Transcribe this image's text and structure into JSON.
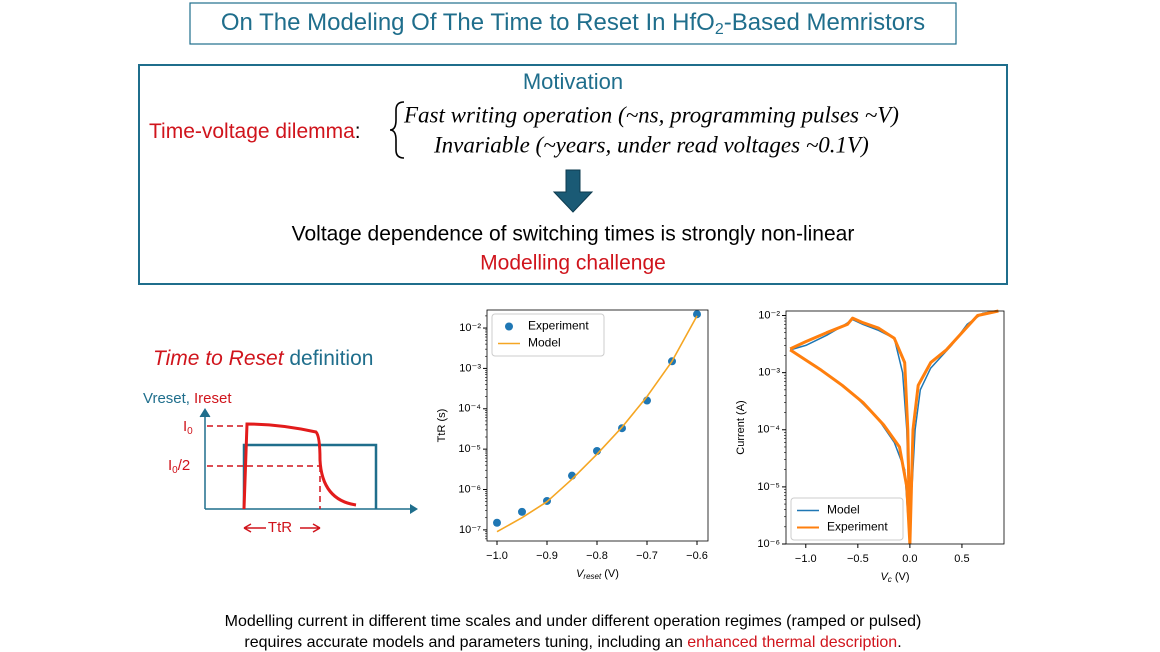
{
  "title": {
    "before": "On The Modeling Of The Time to Reset In HfO",
    "sub": "2",
    "after": "-Based Memristors"
  },
  "motivation": {
    "heading": "Motivation",
    "dilemma": "Time-voltage dilemma",
    "colon": ":",
    "line1": "Fast writing operation (~ns, programming pulses ~V)",
    "line2": "Invariable (~years,  under read voltages ~0.1V)",
    "conclusion": "Voltage dependence of switching times is strongly non-linear",
    "challenge": "Modelling challenge"
  },
  "definition": {
    "title_italic": "Time to Reset",
    "title_rest": " definition",
    "vreset": "Vreset,",
    "ireset": "Ireset",
    "i0": {
      "main": "I",
      "sub": "0"
    },
    "i0half": {
      "main": "I",
      "sub": "0",
      "rest": "/2"
    },
    "ttr": "TtR"
  },
  "footer": {
    "line1": "Modelling current in different time scales and under different operation regimes (ramped or pulsed)",
    "line2": "requires accurate models and parameters tuning, including an ",
    "highlight": "enhanced thermal description",
    "end": "."
  },
  "chart_data": [
    {
      "type": "scatter",
      "log_y": true,
      "legend": "upper left",
      "xlabel": {
        "main": "V",
        "sub": "reset",
        "unit": " (V)"
      },
      "ylabel": "TtR (s)",
      "xlim": [
        -1.02,
        -0.578
      ],
      "ylim": [
        5.3e-08,
        0.028
      ],
      "xticks": [
        {
          "value": -1.0,
          "label": "−1.0"
        },
        {
          "value": -0.9,
          "label": "−0.9"
        },
        {
          "value": -0.8,
          "label": "−0.8"
        },
        {
          "value": -0.7,
          "label": "−0.7"
        },
        {
          "value": -0.6,
          "label": "−0.6"
        }
      ],
      "yticks": [
        {
          "value": 1e-07,
          "label": "10⁻⁷"
        },
        {
          "value": 1e-06,
          "label": "10⁻⁶"
        },
        {
          "value": 1e-05,
          "label": "10⁻⁵"
        },
        {
          "value": 0.0001,
          "label": "10⁻⁴"
        },
        {
          "value": 0.001,
          "label": "10⁻³"
        },
        {
          "value": 0.01,
          "label": "10⁻²"
        }
      ],
      "series": [
        {
          "name": "Experiment",
          "type": "scatter",
          "color": "#1f77b4",
          "x": [
            -1.0,
            -0.95,
            -0.9,
            -0.85,
            -0.8,
            -0.75,
            -0.7,
            -0.65,
            -0.6
          ],
          "values": [
            1.5e-07,
            2.8e-07,
            5.2e-07,
            2.2e-06,
            9e-06,
            3.3e-05,
            0.00016,
            0.0015,
            0.022
          ]
        },
        {
          "name": "Model",
          "type": "line",
          "color": "#f5a623",
          "x": [
            -1.0,
            -0.95,
            -0.9,
            -0.85,
            -0.8,
            -0.75,
            -0.7,
            -0.65,
            -0.6
          ],
          "values": [
            9e-08,
            2e-07,
            5e-07,
            1.8e-06,
            7.5e-06,
            3.5e-05,
            0.0002,
            0.0015,
            0.02
          ]
        }
      ]
    },
    {
      "type": "line",
      "log_y": true,
      "legend": "lower left",
      "xlabel": {
        "main": "V",
        "sub": "c",
        "unit": " (V)"
      },
      "ylabel": "Current (A)",
      "xlim": [
        -1.19,
        0.904
      ],
      "ylim": [
        1e-06,
        0.012
      ],
      "xticks": [
        {
          "value": -1.0,
          "label": "−1.0"
        },
        {
          "value": -0.5,
          "label": "−0.5"
        },
        {
          "value": 0,
          "label": "0.0"
        },
        0.5
      ],
      "yticks": [
        {
          "value": 1e-06,
          "label": "10⁻⁶"
        },
        {
          "value": 1e-05,
          "label": "10⁻⁵"
        },
        {
          "value": 0.0001,
          "label": "10⁻⁴"
        },
        {
          "value": 0.001,
          "label": "10⁻³"
        },
        {
          "value": 0.01,
          "label": "10⁻²"
        }
      ],
      "series": [
        {
          "name": "Model",
          "type": "line",
          "color": "#1f77b4",
          "width": 1.5,
          "x": [
            -1.15,
            -1.0,
            -0.8,
            -0.65,
            -0.55,
            -0.45,
            -0.3,
            -0.15,
            -0.07,
            -0.03,
            0.0,
            null,
            0.0,
            -0.05,
            -0.15,
            -0.3,
            -0.5,
            -0.7,
            -0.9,
            -1.15,
            null,
            0.02,
            0.05,
            0.1,
            0.2,
            0.4,
            0.55,
            0.7,
            0.85
          ],
          "values": [
            0.0025,
            0.003,
            0.0045,
            0.0065,
            0.0085,
            0.007,
            0.0055,
            0.004,
            0.001,
            0.0001,
            1e-06,
            null,
            1e-06,
            2e-05,
            6e-05,
            0.00015,
            0.00035,
            0.0007,
            0.0013,
            0.0025,
            null,
            1e-05,
            0.0001,
            0.0005,
            0.0012,
            0.003,
            0.007,
            0.011,
            0.012
          ]
        },
        {
          "name": "Experiment",
          "type": "line",
          "color": "#ff7f0e",
          "width": 3,
          "x": [
            -1.15,
            -1.0,
            -0.8,
            -0.6,
            -0.55,
            -0.45,
            -0.3,
            -0.15,
            -0.05,
            -0.02,
            0.0,
            null,
            0.0,
            -0.03,
            -0.1,
            -0.25,
            -0.45,
            -0.65,
            -0.85,
            -1.15,
            null,
            0.0,
            0.03,
            0.08,
            0.2,
            0.35,
            0.5,
            0.65,
            0.85
          ],
          "values": [
            0.0026,
            0.0035,
            0.005,
            0.007,
            0.009,
            0.0075,
            0.006,
            0.004,
            0.0015,
            0.0001,
            1e-06,
            null,
            1e-06,
            1e-05,
            5e-05,
            0.00012,
            0.0003,
            0.0006,
            0.0011,
            0.0025,
            null,
            1e-06,
            0.0001,
            0.0006,
            0.0015,
            0.0025,
            0.005,
            0.01,
            0.012
          ]
        }
      ]
    }
  ]
}
